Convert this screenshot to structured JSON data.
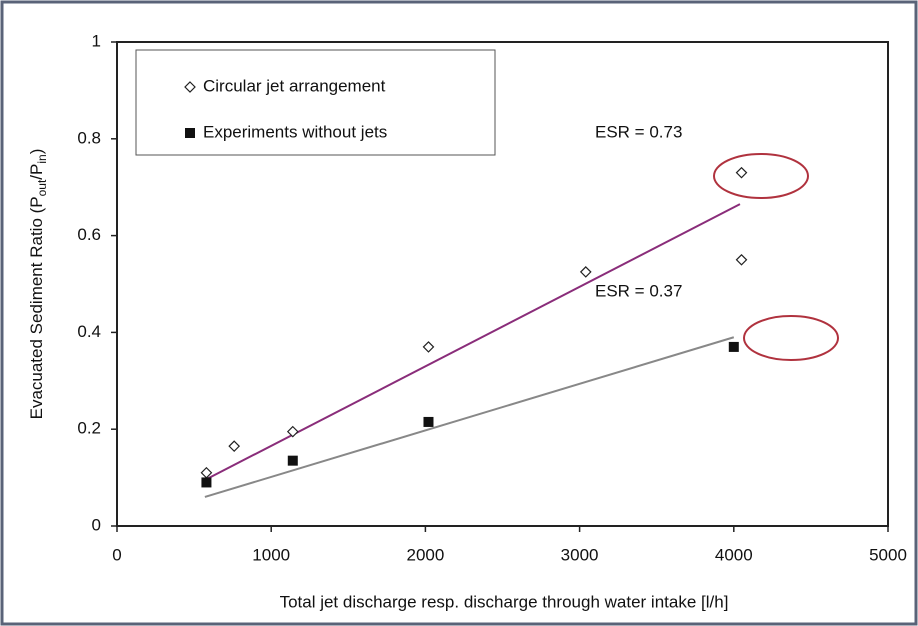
{
  "chart_data": {
    "type": "scatter",
    "xlabel": "Total jet discharge resp. discharge through water intake  [l/h]",
    "ylabel": [
      "Evacuated Sediment Ratio (P",
      "out",
      "/P",
      "in",
      ")"
    ],
    "xlim": [
      0,
      5000
    ],
    "xticks": [
      0,
      1000,
      2000,
      3000,
      4000,
      5000
    ],
    "ylim": [
      0,
      1
    ],
    "yticks": [
      0,
      0.2,
      0.4,
      0.6,
      0.8,
      1
    ],
    "series": [
      {
        "name": "Circular jet arrangement",
        "color": "#222222",
        "marker": "diamond",
        "x": [
          580,
          760,
          1140,
          2020,
          3040,
          4050,
          4050
        ],
        "values": [
          0.11,
          0.165,
          0.195,
          0.37,
          0.525,
          0.73,
          0.55
        ]
      },
      {
        "name": "Experiments without jets",
        "color": "#111111",
        "marker": "square",
        "x": [
          580,
          1140,
          2020,
          4000
        ],
        "values": [
          0.09,
          0.135,
          0.215,
          0.37
        ]
      }
    ],
    "trendlines": [
      {
        "color": "#8a2d7a",
        "x": [
          570,
          4040
        ],
        "values": [
          0.095,
          0.665
        ]
      },
      {
        "color": "#888888",
        "x": [
          570,
          4000
        ],
        "values": [
          0.06,
          0.39
        ]
      }
    ],
    "annotations": [
      "ESR = 0.73",
      "ESR = 0.37"
    ]
  }
}
